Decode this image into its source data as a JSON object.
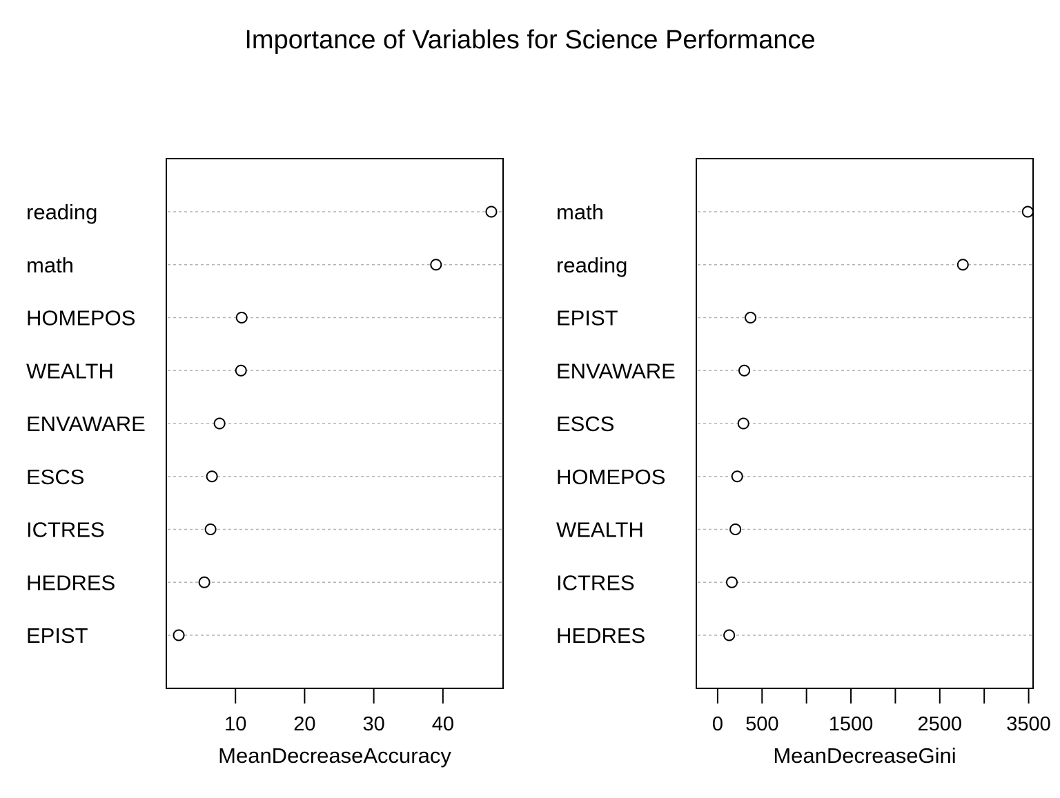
{
  "title": "Importance of Variables for Science Performance",
  "chart_data": [
    {
      "type": "scatter",
      "subtype": "dotchart",
      "xlabel": "MeanDecreaseAccuracy",
      "ylabel": "",
      "xlim": [
        0,
        48.7
      ],
      "xticks": [
        10,
        20,
        30,
        40
      ],
      "xtick_labels": [
        "10",
        "20",
        "30",
        "40"
      ],
      "grid": "dotted horizontal guide lines",
      "categories": [
        "reading",
        "math",
        "HOMEPOS",
        "WEALTH",
        "ENVAWARE",
        "ESCS",
        "ICTRES",
        "HEDRES",
        "EPIST"
      ],
      "values": [
        47.0,
        39.0,
        10.9,
        10.8,
        7.7,
        6.6,
        6.4,
        5.5,
        1.8
      ]
    },
    {
      "type": "scatter",
      "subtype": "dotchart",
      "xlabel": "MeanDecreaseGini",
      "ylabel": "",
      "xlim": [
        -240,
        3550
      ],
      "xticks": [
        0,
        500,
        1000,
        1500,
        2000,
        2500,
        3000,
        3500
      ],
      "xtick_labels": [
        "0",
        "500",
        "",
        "1500",
        "",
        "2500",
        "",
        "3500"
      ],
      "grid": "dotted horizontal guide lines",
      "categories": [
        "math",
        "reading",
        "EPIST",
        "ENVAWARE",
        "ESCS",
        "HOMEPOS",
        "WEALTH",
        "ICTRES",
        "HEDRES"
      ],
      "values": [
        3490,
        2760,
        370,
        300,
        290,
        220,
        200,
        160,
        130
      ]
    }
  ]
}
